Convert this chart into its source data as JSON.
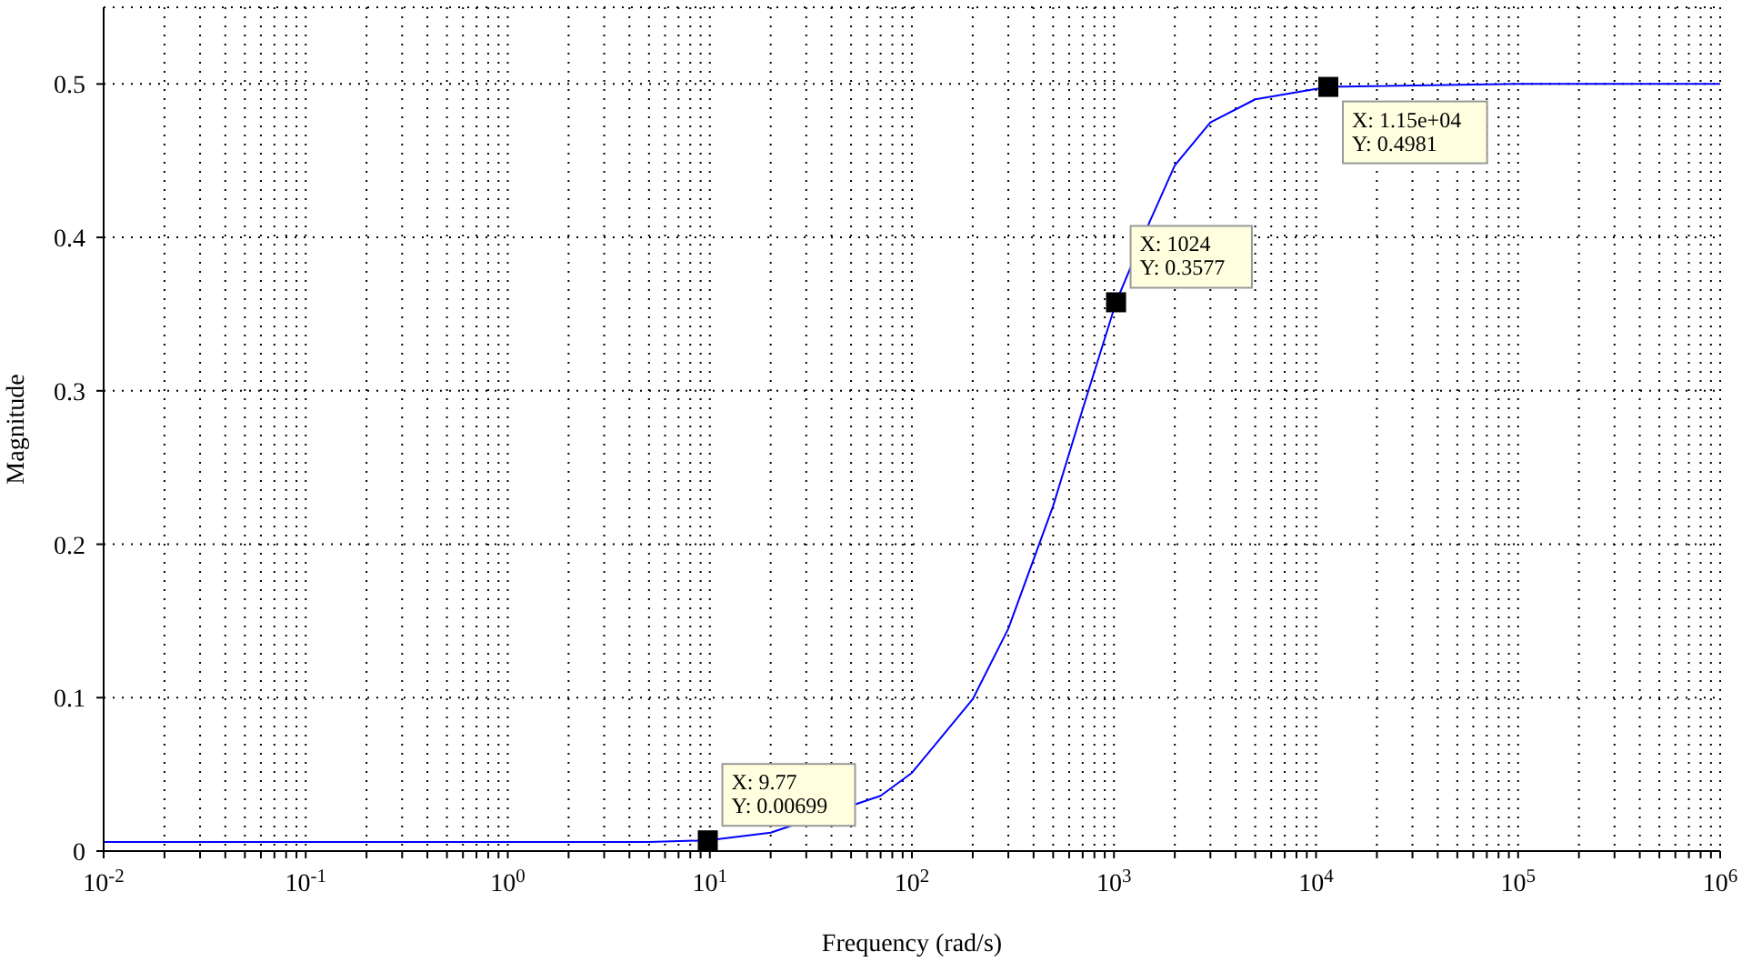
{
  "chart_data": {
    "type": "line",
    "xlabel": "Frequency (rad/s)",
    "ylabel": "Magnitude",
    "log": "x",
    "grid": true,
    "xlim": [
      0.01,
      1000000
    ],
    "xticks": [
      {
        "value": 0.01,
        "label": "10$^{-2}$"
      },
      {
        "value": 0.02,
        "label": null
      },
      {
        "value": 0.03,
        "label": null
      },
      {
        "value": 0.04,
        "label": null
      },
      {
        "value": 0.05,
        "label": null
      },
      {
        "value": 0.06,
        "label": null
      },
      {
        "value": 0.07,
        "label": null
      },
      {
        "value": 0.08,
        "label": null
      },
      {
        "value": 0.09,
        "label": null
      },
      {
        "value": 0.1,
        "label": "10$^{-1}$"
      },
      {
        "value": 0.2,
        "label": null
      },
      {
        "value": 0.3,
        "label": null
      },
      {
        "value": 0.4,
        "label": null
      },
      {
        "value": 0.5,
        "label": null
      },
      {
        "value": 0.6,
        "label": null
      },
      {
        "value": 0.7,
        "label": null
      },
      {
        "value": 0.8,
        "label": null
      },
      {
        "value": 0.9,
        "label": null
      },
      {
        "value": 1,
        "label": "10$^{0}$"
      },
      {
        "value": 2,
        "label": null
      },
      {
        "value": 3,
        "label": null
      },
      {
        "value": 4,
        "label": null
      },
      {
        "value": 5,
        "label": null
      },
      {
        "value": 6,
        "label": null
      },
      {
        "value": 7,
        "label": null
      },
      {
        "value": 8,
        "label": null
      },
      {
        "value": 9,
        "label": null
      },
      {
        "value": 10,
        "label": "10$^{1}$"
      },
      {
        "value": 20,
        "label": null
      },
      {
        "value": 30,
        "label": null
      },
      {
        "value": 40,
        "label": null
      },
      {
        "value": 50,
        "label": null
      },
      {
        "value": 60,
        "label": null
      },
      {
        "value": 70,
        "label": null
      },
      {
        "value": 80,
        "label": null
      },
      {
        "value": 90,
        "label": null
      },
      {
        "value": 100,
        "label": "10$^{2}$"
      },
      {
        "value": 200,
        "label": null
      },
      {
        "value": 300,
        "label": null
      },
      {
        "value": 400,
        "label": null
      },
      {
        "value": 500,
        "label": null
      },
      {
        "value": 600,
        "label": null
      },
      {
        "value": 700,
        "label": null
      },
      {
        "value": 800,
        "label": null
      },
      {
        "value": 900,
        "label": null
      },
      {
        "value": 1000,
        "label": "10$^{3}$"
      },
      {
        "value": 2000,
        "label": null
      },
      {
        "value": 3000,
        "label": null
      },
      {
        "value": 4000,
        "label": null
      },
      {
        "value": 5000,
        "label": null
      },
      {
        "value": 6000,
        "label": null
      },
      {
        "value": 7000,
        "label": null
      },
      {
        "value": 8000,
        "label": null
      },
      {
        "value": 9000,
        "label": null
      },
      {
        "value": 10000,
        "label": "10$^{4}$"
      },
      {
        "value": 20000,
        "label": null
      },
      {
        "value": 30000,
        "label": null
      },
      {
        "value": 40000,
        "label": null
      },
      {
        "value": 50000,
        "label": null
      },
      {
        "value": 60000,
        "label": null
      },
      {
        "value": 70000,
        "label": null
      },
      {
        "value": 80000,
        "label": null
      },
      {
        "value": 90000,
        "label": null
      },
      {
        "value": 100000,
        "label": "10$^{5}$"
      },
      {
        "value": 200000,
        "label": null
      },
      {
        "value": 300000,
        "label": null
      },
      {
        "value": 400000,
        "label": null
      },
      {
        "value": 500000,
        "label": null
      },
      {
        "value": 600000,
        "label": null
      },
      {
        "value": 700000,
        "label": null
      },
      {
        "value": 800000,
        "label": null
      },
      {
        "value": 900000,
        "label": null
      },
      {
        "value": 1000000,
        "label": "10$^{6}$"
      }
    ],
    "ylim": [
      0,
      0.55
    ],
    "yticks": [
      0,
      0.1,
      0.2,
      0.3,
      0.4,
      0.5
    ],
    "series": [
      {
        "color": "#0000ff",
        "line_style": "solid",
        "marker": "none",
        "x": [
          0.01,
          0.1,
          1,
          5,
          9.77,
          20,
          70,
          100,
          200,
          300,
          500,
          700,
          1024,
          1500,
          2000,
          3000,
          5000,
          11500,
          100000,
          1000000
        ],
        "values": [
          0.006,
          0.006,
          0.006,
          0.006,
          0.00699,
          0.012,
          0.036,
          0.051,
          0.099,
          0.145,
          0.225,
          0.288,
          0.3577,
          0.41,
          0.447,
          0.475,
          0.49,
          0.4981,
          0.5,
          0.5
        ]
      },
      {
        "type": "scatter",
        "color": "#000000",
        "marker": "square",
        "x": [
          9.77,
          1024,
          11500
        ],
        "values": [
          0.00699,
          0.3577,
          0.4981
        ]
      }
    ],
    "annotations": [
      {
        "text": "X: 9.77\nY: 0.00699",
        "x": 9.77,
        "y": 0.00699
      },
      {
        "text": "X: 1024\nY: 0.3577",
        "x": 1024,
        "y": 0.3577
      },
      {
        "text": "X: 1.15e+04\nY: 0.4981",
        "x": 11500,
        "y": 0.4981
      }
    ]
  }
}
